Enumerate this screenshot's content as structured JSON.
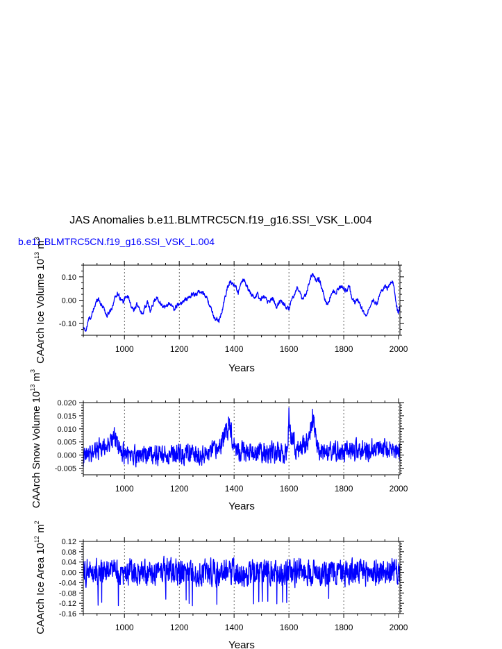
{
  "title": "JAS Anomalies b.e11.BLMTRC5CN.f19_g16.SSI_VSK_L.004",
  "subtitle": "b.e11.BLMTRC5CN.f19_g16.SSI_VSK_L.004",
  "colors": {
    "series": "#0000ff",
    "text": "#000000",
    "subtitle": "#0000ff",
    "grid": "#000000"
  },
  "chart_data": [
    {
      "type": "line",
      "ylabel": "CAArch Ice Volume 10",
      "ylabel_exp": "13",
      "ylabel_unit": " m",
      "ylabel_unit_exp": "3",
      "xlabel": "Years",
      "xlim": [
        850,
        2005
      ],
      "ylim": [
        -0.15,
        0.15
      ],
      "xticks": [
        1000,
        1200,
        1400,
        1600,
        1800,
        2000
      ],
      "yticks": [
        -0.1,
        0.0,
        0.1
      ],
      "yticklabels": [
        "-0.10",
        "0.00",
        "0.10"
      ],
      "grid": "vertical dashed at major x ticks",
      "keypoints": [
        [
          850,
          -0.12
        ],
        [
          860,
          -0.13
        ],
        [
          870,
          -0.08
        ],
        [
          880,
          -0.07
        ],
        [
          890,
          -0.03
        ],
        [
          900,
          0.0
        ],
        [
          905,
          0.01
        ],
        [
          915,
          -0.02
        ],
        [
          925,
          -0.03
        ],
        [
          935,
          -0.07
        ],
        [
          945,
          -0.05
        ],
        [
          955,
          -0.03
        ],
        [
          965,
          0.01
        ],
        [
          975,
          0.03
        ],
        [
          985,
          0.01
        ],
        [
          995,
          -0.01
        ],
        [
          1005,
          0.02
        ],
        [
          1015,
          0.01
        ],
        [
          1025,
          -0.03
        ],
        [
          1035,
          -0.04
        ],
        [
          1045,
          -0.02
        ],
        [
          1055,
          -0.04
        ],
        [
          1065,
          -0.06
        ],
        [
          1075,
          -0.03
        ],
        [
          1085,
          -0.01
        ],
        [
          1095,
          -0.05
        ],
        [
          1110,
          0.0
        ],
        [
          1120,
          0.01
        ],
        [
          1135,
          -0.02
        ],
        [
          1150,
          -0.03
        ],
        [
          1165,
          -0.01
        ],
        [
          1180,
          -0.04
        ],
        [
          1195,
          -0.02
        ],
        [
          1210,
          -0.01
        ],
        [
          1220,
          0.0
        ],
        [
          1235,
          0.01
        ],
        [
          1250,
          0.03
        ],
        [
          1260,
          0.02
        ],
        [
          1270,
          0.04
        ],
        [
          1280,
          0.03
        ],
        [
          1290,
          0.03
        ],
        [
          1300,
          0.01
        ],
        [
          1310,
          -0.02
        ],
        [
          1320,
          -0.05
        ],
        [
          1330,
          -0.08
        ],
        [
          1340,
          -0.08
        ],
        [
          1345,
          -0.09
        ],
        [
          1355,
          -0.05
        ],
        [
          1365,
          0.0
        ],
        [
          1375,
          0.05
        ],
        [
          1385,
          0.08
        ],
        [
          1395,
          0.07
        ],
        [
          1405,
          0.06
        ],
        [
          1415,
          0.03
        ],
        [
          1425,
          0.07
        ],
        [
          1435,
          0.09
        ],
        [
          1445,
          0.06
        ],
        [
          1455,
          0.04
        ],
        [
          1465,
          0.02
        ],
        [
          1475,
          0.01
        ],
        [
          1485,
          0.03
        ],
        [
          1495,
          0.0
        ],
        [
          1510,
          0.02
        ],
        [
          1525,
          -0.01
        ],
        [
          1540,
          0.01
        ],
        [
          1555,
          -0.03
        ],
        [
          1570,
          0.0
        ],
        [
          1585,
          -0.02
        ],
        [
          1600,
          -0.04
        ],
        [
          1610,
          0.01
        ],
        [
          1620,
          0.02
        ],
        [
          1630,
          0.05
        ],
        [
          1640,
          0.03
        ],
        [
          1650,
          0.0
        ],
        [
          1660,
          0.02
        ],
        [
          1670,
          0.06
        ],
        [
          1680,
          0.1
        ],
        [
          1690,
          0.11
        ],
        [
          1700,
          0.08
        ],
        [
          1710,
          0.09
        ],
        [
          1720,
          0.05
        ],
        [
          1730,
          0.01
        ],
        [
          1740,
          -0.02
        ],
        [
          1750,
          0.01
        ],
        [
          1760,
          0.04
        ],
        [
          1770,
          0.03
        ],
        [
          1780,
          0.05
        ],
        [
          1790,
          0.06
        ],
        [
          1800,
          0.05
        ],
        [
          1810,
          0.04
        ],
        [
          1820,
          0.06
        ],
        [
          1830,
          0.01
        ],
        [
          1840,
          -0.01
        ],
        [
          1850,
          0.0
        ],
        [
          1860,
          -0.02
        ],
        [
          1870,
          -0.04
        ],
        [
          1880,
          -0.07
        ],
        [
          1890,
          -0.04
        ],
        [
          1900,
          -0.01
        ],
        [
          1910,
          0.0
        ],
        [
          1920,
          -0.02
        ],
        [
          1930,
          0.02
        ],
        [
          1940,
          0.04
        ],
        [
          1950,
          0.06
        ],
        [
          1960,
          0.05
        ],
        [
          1970,
          0.07
        ],
        [
          1980,
          0.08
        ],
        [
          1985,
          0.04
        ],
        [
          1990,
          -0.01
        ],
        [
          1995,
          -0.04
        ],
        [
          2000,
          -0.05
        ],
        [
          2005,
          -0.03
        ]
      ],
      "noise_amplitude": 0.008
    },
    {
      "type": "line",
      "ylabel": "CAArch Snow Volume 10",
      "ylabel_exp": "13",
      "ylabel_unit": " m",
      "ylabel_unit_exp": "3",
      "xlabel": "Years",
      "xlim": [
        850,
        2005
      ],
      "ylim": [
        -0.0075,
        0.02
      ],
      "xticks": [
        1000,
        1200,
        1400,
        1600,
        1800,
        2000
      ],
      "yticks": [
        -0.005,
        0.0,
        0.005,
        0.01,
        0.015,
        0.02
      ],
      "yticklabels": [
        "-0.005",
        "0.000",
        "0.005",
        "0.010",
        "0.015",
        "0.020"
      ],
      "grid": "vertical dashed at major x ticks",
      "keypoints": [
        [
          850,
          -0.002
        ],
        [
          880,
          0.001
        ],
        [
          900,
          0.002
        ],
        [
          940,
          0.004
        ],
        [
          960,
          0.006
        ],
        [
          980,
          0.003
        ],
        [
          1000,
          0.0
        ],
        [
          1100,
          0.0
        ],
        [
          1200,
          0.0
        ],
        [
          1300,
          0.0
        ],
        [
          1340,
          0.002
        ],
        [
          1360,
          0.006
        ],
        [
          1375,
          0.01
        ],
        [
          1385,
          0.012
        ],
        [
          1395,
          0.006
        ],
        [
          1410,
          0.002
        ],
        [
          1450,
          0.001
        ],
        [
          1500,
          0.001
        ],
        [
          1550,
          0.001
        ],
        [
          1590,
          0.0
        ],
        [
          1600,
          0.012
        ],
        [
          1610,
          0.006
        ],
        [
          1630,
          0.002
        ],
        [
          1660,
          0.004
        ],
        [
          1680,
          0.009
        ],
        [
          1690,
          0.011
        ],
        [
          1700,
          0.004
        ],
        [
          1720,
          0.001
        ],
        [
          1800,
          0.001
        ],
        [
          1850,
          0.002
        ],
        [
          1900,
          0.002
        ],
        [
          1950,
          0.003
        ],
        [
          2000,
          0.001
        ]
      ],
      "spikes": [
        [
          1380,
          0.0145
        ],
        [
          1600,
          0.018
        ],
        [
          1686,
          0.0175
        ],
        [
          1692,
          0.0145
        ],
        [
          963,
          0.0105
        ]
      ],
      "noise_amplitude": 0.0035
    },
    {
      "type": "line",
      "ylabel": "CAArch Ice Area 10",
      "ylabel_exp": "12",
      "ylabel_unit": " m",
      "ylabel_unit_exp": "2",
      "xlabel": "Years",
      "xlim": [
        850,
        2005
      ],
      "ylim": [
        -0.16,
        0.12
      ],
      "xticks": [
        1000,
        1200,
        1400,
        1600,
        1800,
        2000
      ],
      "yticks": [
        -0.16,
        -0.12,
        -0.08,
        -0.04,
        0.0,
        0.04,
        0.08,
        0.12
      ],
      "yticklabels": [
        "-0.16",
        "-0.12",
        "-0.08",
        "-0.04",
        "0.00",
        "0.04",
        "0.08",
        "0.12"
      ],
      "grid": "vertical dashed at major x ticks",
      "keypoints": [
        [
          850,
          0.0
        ],
        [
          1000,
          0.0
        ],
        [
          1200,
          0.0
        ],
        [
          1400,
          0.0
        ],
        [
          1600,
          0.0
        ],
        [
          1800,
          0.0
        ],
        [
          2005,
          0.0
        ]
      ],
      "noise_amplitude": 0.045
    }
  ]
}
